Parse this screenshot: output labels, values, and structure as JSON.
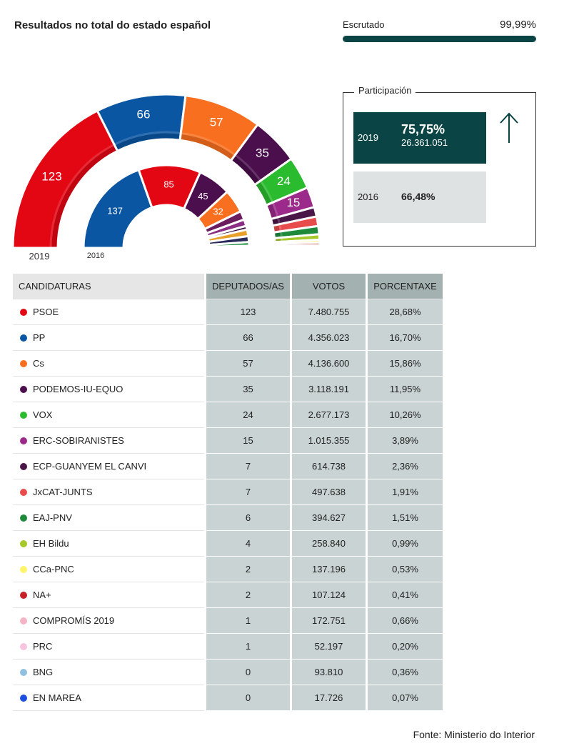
{
  "header": {
    "title": "Resultados no total do estado español"
  },
  "scrutiny": {
    "label": "Escrutado",
    "value": 99.99,
    "value_label": "99,99%",
    "xlim": [
      0,
      100
    ],
    "color": "#0b4444"
  },
  "participation": {
    "title": "Participación",
    "current": {
      "year": "2019",
      "percent": "75,75%",
      "votes": "26.361.051"
    },
    "previous": {
      "year": "2016",
      "percent": "66,48%"
    }
  },
  "chart_data": [
    {
      "type": "half-donut",
      "label": "2019",
      "values": [
        123,
        66,
        57,
        35,
        24,
        15,
        7,
        7,
        6,
        4,
        2,
        2,
        1,
        1
      ],
      "colors": [
        "#e30613",
        "#0a56a2",
        "#f8701f",
        "#4b0f4e",
        "#2bbb2e",
        "#9b2a8a",
        "#4a1547",
        "#e84b4b",
        "#1f8a3a",
        "#a6c82a",
        "#fff56b",
        "#c62127",
        "#f5b5c6",
        "#f6c4dd"
      ]
    },
    {
      "type": "half-donut",
      "label": "2016",
      "values": [
        137,
        85,
        45,
        32,
        12,
        9,
        5,
        9,
        8,
        5,
        2,
        1
      ],
      "colors": [
        "#0a56a2",
        "#e30613",
        "#4b0f4e",
        "#f8701f",
        "#6b1d5e",
        "#8a2f84",
        "#3d1240",
        "#e7a02a",
        "#2a2a5a",
        "#1f8a3a",
        "#a6c82a",
        "#fff56b"
      ]
    }
  ],
  "table": {
    "columns": [
      "CANDIDATURAS",
      "DEPUTADOS/AS",
      "VOTOS",
      "PORCENTAXE"
    ],
    "colors": [
      "#e30613",
      "#0a56a2",
      "#f8701f",
      "#4b0f4e",
      "#2bbb2e",
      "#9b2a8a",
      "#4a1547",
      "#e84b4b",
      "#1f8a3a",
      "#a6c82a",
      "#fff56b",
      "#c62127",
      "#f5b5c6",
      "#f6c4dd",
      "#8fc0e0",
      "#1c4fe0"
    ],
    "rows": [
      [
        "PSOE",
        123,
        "7.480.755",
        "28,68%"
      ],
      [
        "PP",
        66,
        "4.356.023",
        "16,70%"
      ],
      [
        "Cs",
        57,
        "4.136.600",
        "15,86%"
      ],
      [
        "PODEMOS-IU-EQUO",
        35,
        "3.118.191",
        "11,95%"
      ],
      [
        "VOX",
        24,
        "2.677.173",
        "10,26%"
      ],
      [
        "ERC-SOBIRANISTES",
        15,
        "1.015.355",
        "3,89%"
      ],
      [
        "ECP-GUANYEM EL CANVI",
        7,
        "614.738",
        "2,36%"
      ],
      [
        "JxCAT-JUNTS",
        7,
        "497.638",
        "1,91%"
      ],
      [
        "EAJ-PNV",
        6,
        "394.627",
        "1,51%"
      ],
      [
        "EH Bildu",
        4,
        "258.840",
        "0,99%"
      ],
      [
        "CCa-PNC",
        2,
        "137.196",
        "0,53%"
      ],
      [
        "NA+",
        2,
        "107.124",
        "0,41%"
      ],
      [
        "COMPROMÍS 2019",
        1,
        "172.751",
        "0,66%"
      ],
      [
        "PRC",
        1,
        "52.197",
        "0,20%"
      ],
      [
        "BNG",
        0,
        "93.810",
        "0,36%"
      ],
      [
        "EN MAREA",
        0,
        "17.726",
        "0,07%"
      ]
    ]
  },
  "footer": {
    "source": "Fonte: Ministerio do Interior"
  }
}
